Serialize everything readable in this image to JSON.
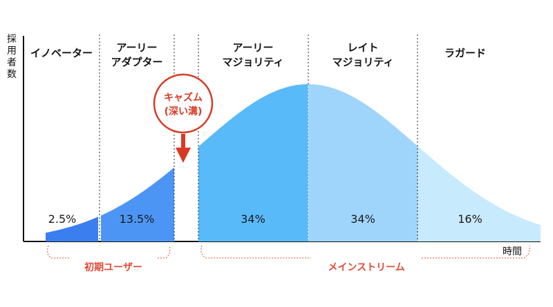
{
  "axes": {
    "y_label_lines": [
      "採",
      "用",
      "者",
      "数"
    ],
    "x_label": "時間"
  },
  "segments": [
    {
      "label_lines": [
        "イノベーター"
      ],
      "percent": "2.5%",
      "color": "#3a7ef0"
    },
    {
      "label_lines": [
        "アーリー",
        "アダプター"
      ],
      "percent": "13.5%",
      "color": "#4d95f4"
    },
    {
      "label_lines": [
        "アーリー",
        "マジョリティ"
      ],
      "percent": "34%",
      "color": "#58baf9"
    },
    {
      "label_lines": [
        "レイト",
        "マジョリティ"
      ],
      "percent": "34%",
      "color": "#9fd4fb"
    },
    {
      "label_lines": [
        "ラガード"
      ],
      "percent": "16%",
      "color": "#c7eafd"
    }
  ],
  "chasm": {
    "label_lines": [
      "キャズム",
      "(深い溝)"
    ],
    "color": "#d83a26"
  },
  "groups": {
    "early": "初期ユーザー",
    "mainstream": "メインストリーム",
    "color": "#e04a34"
  }
}
